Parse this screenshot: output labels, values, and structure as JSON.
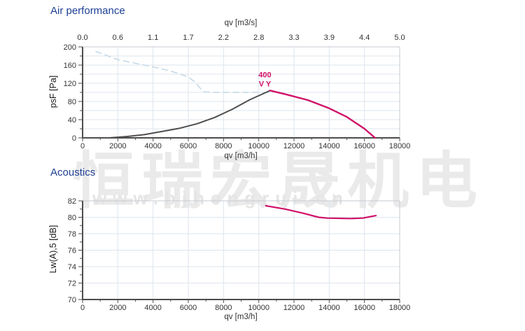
{
  "watermark": {
    "cjk_text": "恒瑞宏晟机电",
    "url_text": "www.bjhengrui.cn"
  },
  "styles": {
    "title_color": "#1c3e94",
    "tick_color": "#333333",
    "axis_color": "#4d4d4d",
    "grid_color": "#dde5ee",
    "border_color": "#c5cbd1",
    "magenta": "#d01268",
    "dark_curve": "#4f4f4f",
    "dashed_curve": "#c8dbe8"
  },
  "chart_data": [
    {
      "type": "line",
      "title": "Air performance",
      "xlabel": "qv [m3/h]",
      "ylabel": "psF [Pa]",
      "top_axis": {
        "label": "qv [m3/s]",
        "tick_labels": [
          "0.0",
          "0.6",
          "1.1",
          "1.7",
          "2.2",
          "2.8",
          "3.3",
          "3.9",
          "4.4",
          "5.0"
        ]
      },
      "xlim": [
        0,
        18000
      ],
      "ylim": [
        0,
        200
      ],
      "x_tick_labels": [
        "0",
        "2000",
        "4000",
        "6000",
        "8000",
        "10000",
        "12000",
        "14000",
        "16000",
        "18000"
      ],
      "y_tick_labels": [
        "0",
        "40",
        "80",
        "120",
        "160",
        "200"
      ],
      "y_divisions": 10,
      "y_grid_every": 1,
      "grid": true,
      "legend_position": "none",
      "series": [
        {
          "name": "system-curve-dashed",
          "color": "#c8dbe8",
          "style": "dashed",
          "width": 1.7,
          "points": [
            [
              750,
              190
            ],
            [
              2000,
              172
            ],
            [
              3000,
              164
            ],
            [
              4000,
              156
            ],
            [
              5000,
              147
            ],
            [
              6000,
              134
            ],
            [
              6400,
              122
            ],
            [
              6700,
              108
            ],
            [
              6900,
              101
            ],
            [
              7400,
              100
            ],
            [
              10550,
              100
            ]
          ]
        },
        {
          "name": "fan-curve-rising",
          "color": "#4f4f4f",
          "style": "solid",
          "width": 2,
          "points": [
            [
              0,
              0
            ],
            [
              1500,
              0
            ],
            [
              2500,
              3
            ],
            [
              3500,
              7
            ],
            [
              4500,
              14
            ],
            [
              5500,
              21
            ],
            [
              6500,
              31
            ],
            [
              7500,
              45
            ],
            [
              8500,
              63
            ],
            [
              9500,
              84
            ],
            [
              10650,
              104
            ]
          ]
        },
        {
          "name": "fan-curve-400VY",
          "color": "#d01268",
          "style": "solid",
          "width": 2.4,
          "label_lines": [
            "400",
            "V Y"
          ],
          "label_anchor": [
            10350,
            104
          ],
          "points": [
            [
              10650,
              104
            ],
            [
              11500,
              96
            ],
            [
              12800,
              83
            ],
            [
              14000,
              65
            ],
            [
              15000,
              46
            ],
            [
              16000,
              20
            ],
            [
              16600,
              0
            ]
          ]
        }
      ]
    },
    {
      "type": "line",
      "title": "Acoustics",
      "xlabel": "qv [m3/h]",
      "ylabel": "Lw(A),5 [dB]",
      "xlim": [
        0,
        18000
      ],
      "ylim": [
        70,
        82
      ],
      "x_tick_labels": [
        "0",
        "2000",
        "4000",
        "6000",
        "8000",
        "10000",
        "12000",
        "14000",
        "16000",
        "18000"
      ],
      "y_tick_labels": [
        "70",
        "72",
        "74",
        "76",
        "78",
        "80",
        "82"
      ],
      "y_divisions": 12,
      "y_grid_every": 2,
      "grid": true,
      "legend_position": "none",
      "series": [
        {
          "name": "sound-power-level",
          "color": "#d01268",
          "style": "solid",
          "width": 2.2,
          "points": [
            [
              10400,
              81.4
            ],
            [
              11500,
              81.0
            ],
            [
              12500,
              80.5
            ],
            [
              13400,
              80.0
            ],
            [
              13900,
              79.9
            ],
            [
              15200,
              79.85
            ],
            [
              15900,
              79.9
            ],
            [
              16650,
              80.2
            ]
          ]
        }
      ]
    }
  ]
}
